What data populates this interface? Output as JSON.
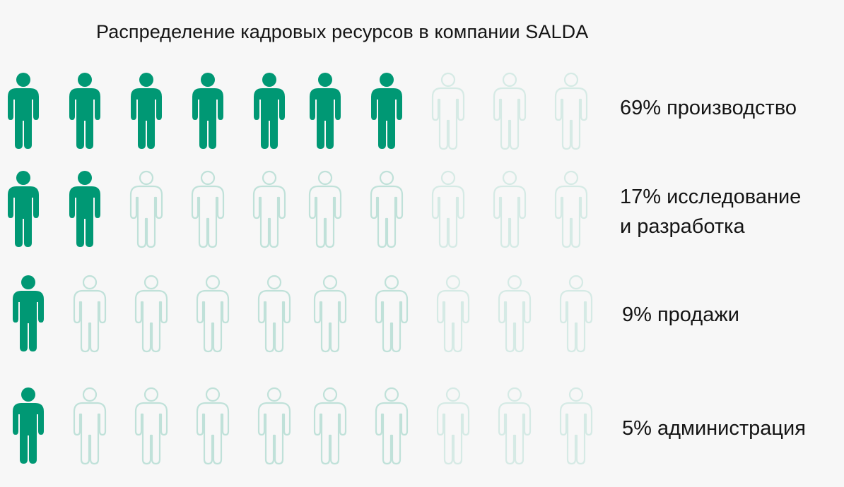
{
  "title": "Распределение кадровых ресурсов в компании SALDA",
  "colors": {
    "filled": "#009874",
    "faded": "#009874",
    "background": "#f7f7f7"
  },
  "chart_data": {
    "type": "pictogram",
    "title": "Распределение кадровых ресурсов в компании SALDA",
    "icons_per_row": 10,
    "rows": [
      {
        "label_lines": [
          "69% производство"
        ],
        "value": 69,
        "filled_icons": 7
      },
      {
        "label_lines": [
          "17% исследование",
          "и разработка"
        ],
        "value": 17,
        "filled_icons": 2
      },
      {
        "label_lines": [
          "9% продажи"
        ],
        "value": 9,
        "filled_icons": 1
      },
      {
        "label_lines": [
          "5% администрация"
        ],
        "value": 5,
        "filled_icons": 1
      }
    ]
  }
}
